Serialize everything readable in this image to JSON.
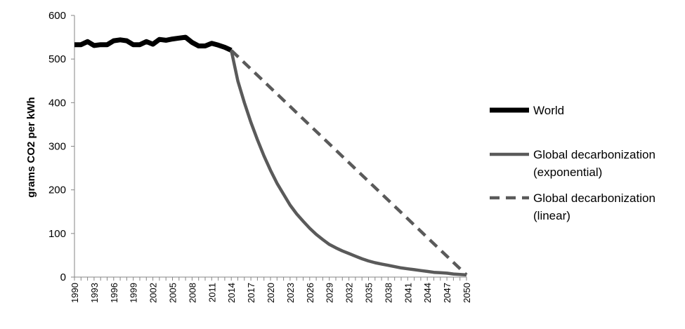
{
  "chart_data": {
    "type": "line",
    "title": "",
    "xlabel": "",
    "ylabel": "grams CO2 per kWh",
    "xlim": [
      1990,
      2050
    ],
    "ylim": [
      0,
      600
    ],
    "yticks": [
      0,
      100,
      200,
      300,
      400,
      500,
      600
    ],
    "xticks": [
      "1990",
      "1993",
      "1996",
      "1999",
      "2002",
      "2005",
      "2008",
      "2011",
      "2014",
      "2017",
      "2020",
      "2023",
      "2026",
      "2029",
      "2032",
      "2035",
      "2038",
      "2041",
      "2044",
      "2047",
      "2050"
    ],
    "grid": false,
    "legend_position": "right",
    "series": [
      {
        "name": "World",
        "color": "#000000",
        "style": "solid",
        "x": [
          1990,
          1991,
          1992,
          1993,
          1994,
          1995,
          1996,
          1997,
          1998,
          1999,
          2000,
          2001,
          2002,
          2003,
          2004,
          2005,
          2006,
          2007,
          2008,
          2009,
          2010,
          2011,
          2012,
          2013,
          2014
        ],
        "y": [
          533,
          533,
          540,
          531,
          533,
          533,
          542,
          544,
          542,
          533,
          533,
          540,
          534,
          545,
          543,
          546,
          548,
          550,
          538,
          530,
          530,
          536,
          532,
          527,
          520
        ]
      },
      {
        "name": "Global decarbonization (exponential)",
        "color": "#5a5a5a",
        "style": "solid",
        "x": [
          2014,
          2015,
          2016,
          2017,
          2018,
          2019,
          2020,
          2021,
          2022,
          2023,
          2024,
          2025,
          2026,
          2027,
          2028,
          2029,
          2030,
          2031,
          2032,
          2033,
          2034,
          2035,
          2036,
          2037,
          2038,
          2039,
          2040,
          2041,
          2042,
          2043,
          2044,
          2045,
          2046,
          2047,
          2048,
          2049,
          2050
        ],
        "y": [
          520,
          450,
          400,
          355,
          315,
          278,
          245,
          215,
          190,
          165,
          145,
          128,
          112,
          98,
          86,
          75,
          67,
          60,
          54,
          48,
          42,
          37,
          33,
          30,
          27,
          24,
          21,
          19,
          17,
          15,
          13,
          11,
          10,
          9,
          7,
          6,
          5
        ]
      },
      {
        "name": "Global decarbonization (linear)",
        "color": "#5a5a5a",
        "style": "dashed",
        "x": [
          2014,
          2050
        ],
        "y": [
          520,
          5
        ]
      }
    ],
    "legend": [
      {
        "lines": [
          "World"
        ]
      },
      {
        "lines": [
          "Global decarbonization",
          "(exponential)"
        ]
      },
      {
        "lines": [
          "Global decarbonization",
          "(linear)"
        ]
      }
    ]
  }
}
